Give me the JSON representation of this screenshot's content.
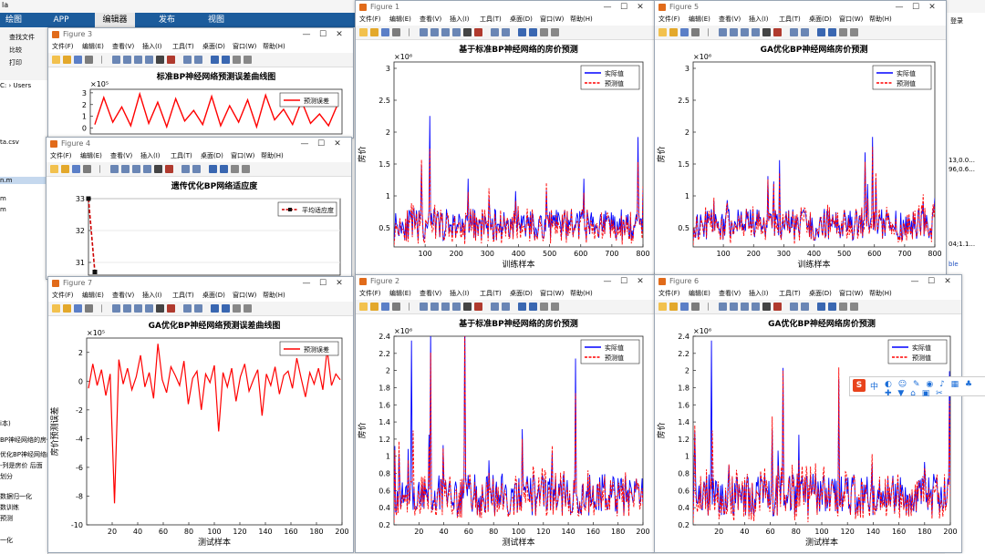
{
  "app": {
    "title_fragment": "la",
    "tabs": [
      "绘图",
      "APP",
      "编辑器",
      "发布",
      "视图"
    ],
    "active_tab": 2,
    "toolstrip": [
      "查找文件",
      "比较",
      "打印"
    ],
    "path": "C: › Users",
    "files": [
      "ta.csv",
      "m",
      "m",
      "n.m"
    ],
    "workspace_lines": [
      "i本)",
      "BP神经网络的房价",
      "优化BP神经网络的",
      "-列是房价 后面",
      "划分",
      "数据归一化",
      "数训练",
      "预测",
      "一化"
    ],
    "right_fragments": [
      "登录",
      "13,0.0...",
      "96,0.6...",
      "04;1.1...",
      "ble"
    ]
  },
  "figures": [
    {
      "id": "fig3",
      "title": "Figure 3",
      "menu": [
        "文件(F)",
        "编辑(E)",
        "查看(V)",
        "插入(I)",
        "工具(T)",
        "桌面(D)",
        "窗口(W)",
        "帮助(H)"
      ],
      "chart_data": {
        "type": "line",
        "title": "标准BP神经网络预测误差曲线图",
        "exponent": "×10⁵",
        "yticks": [
          3,
          2,
          1,
          0
        ],
        "ylim": [
          -0.5,
          3.3
        ],
        "series": [
          {
            "name": "预测误差",
            "color": "#ff0000",
            "values": [
              0.3,
              2.6,
              0.5,
              1.8,
              0.2,
              2.9,
              0.4,
              2.2,
              0.1,
              2.5,
              0.6,
              1.5,
              0.3,
              2.7,
              0.2,
              1.9,
              0.5,
              2.4,
              0.1,
              2.8,
              0.7,
              1.6,
              0.3,
              2.3,
              0.4,
              1.2,
              0.2,
              2.0
            ]
          }
        ],
        "legend": "top-right"
      }
    },
    {
      "id": "fig4",
      "title": "Figure 4",
      "menu": [
        "文件(F)",
        "编辑(E)",
        "查看(V)",
        "插入(I)",
        "工具(T)",
        "桌面(D)",
        "窗口(W)",
        "帮助(H)"
      ],
      "chart_data": {
        "type": "line",
        "title": "遗传优化BP网络适应度",
        "yticks": [
          33,
          32,
          31
        ],
        "ylim": [
          30.6,
          33
        ],
        "x": [
          1,
          2
        ],
        "series": [
          {
            "name": "平均适应度",
            "color": "#cc0000",
            "values": [
              33,
              30.7
            ]
          }
        ],
        "legend": "top-right"
      }
    },
    {
      "id": "fig7",
      "title": "Figure 7",
      "menu": [
        "文件(F)",
        "编辑(E)",
        "查看(V)",
        "插入(I)",
        "工具(T)",
        "桌面(D)",
        "窗口(W)",
        "帮助(H)"
      ],
      "chart_data": {
        "type": "line",
        "title": "GA优化BP神经网络预测误差曲线图",
        "exponent": "×10⁵",
        "ylabel": "房价预测误差",
        "xlabel": "测试样本",
        "xticks": [
          20,
          40,
          60,
          80,
          100,
          120,
          140,
          160,
          180,
          200
        ],
        "xlim": [
          0,
          200
        ],
        "yticks": [
          2,
          0,
          -2,
          -4,
          -6,
          -8,
          -10
        ],
        "ylim": [
          -10,
          3
        ],
        "series": [
          {
            "name": "预测误差",
            "color": "#ff0000",
            "values": [
              -0.5,
              1.2,
              -0.3,
              0.8,
              -1.0,
              0.5,
              -8.5,
              1.5,
              -0.2,
              0.9,
              -0.6,
              0.3,
              1.8,
              -0.4,
              0.6,
              -1.2,
              2.6,
              0.1,
              -0.8,
              1.0,
              0.4,
              -0.3,
              1.4,
              -1.6,
              0.2,
              0.7,
              -2.0,
              0.5,
              -0.1,
              1.1,
              -3.5,
              0.6,
              -0.4,
              0.9,
              -1.4,
              0.3,
              1.2,
              -0.7,
              0.1,
              0.8,
              -2.4,
              0.5,
              -0.3,
              1.0,
              -0.9,
              0.4,
              0.7,
              -0.5,
              1.6,
              0.2,
              -1.1,
              0.6,
              -0.2,
              0.9,
              -0.6,
              2.2,
              -0.3,
              0.5,
              0.1
            ]
          }
        ],
        "legend": "top-right"
      }
    },
    {
      "id": "fig1",
      "title": "Figure 1",
      "menu": [
        "文件(F)",
        "编辑(E)",
        "查看(V)",
        "插入(I)",
        "工具(T)",
        "桌面(D)",
        "窗口(W)",
        "帮助(H)"
      ],
      "chart_data": {
        "type": "line",
        "title": "基于标准BP神经网络的房价预测",
        "exponent": "×10⁶",
        "ylabel": "房价",
        "xlabel": "训练样本",
        "xticks": [
          100,
          200,
          300,
          400,
          500,
          600,
          700,
          800
        ],
        "xlim": [
          0,
          800
        ],
        "yticks": [
          3,
          2.5,
          2,
          1.5,
          1,
          0.5
        ],
        "ylim": [
          0.2,
          3.1
        ],
        "seed": 11,
        "series": [
          {
            "name": "实际值",
            "color": "#0000ff"
          },
          {
            "name": "预测值",
            "color": "#ff0000"
          }
        ],
        "legend": "top-right"
      }
    },
    {
      "id": "fig5",
      "title": "Figure 5",
      "menu": [
        "文件(F)",
        "编辑(E)",
        "查看(V)",
        "插入(I)",
        "工具(T)",
        "桌面(D)",
        "窗口(W)",
        "帮助(H)"
      ],
      "chart_data": {
        "type": "line",
        "title": "GA优化BP神经网络房价预测",
        "exponent": "×10⁶",
        "ylabel": "房价",
        "xlabel": "训练样本",
        "xticks": [
          100,
          200,
          300,
          400,
          500,
          600,
          700,
          800
        ],
        "xlim": [
          0,
          800
        ],
        "yticks": [
          3,
          2.5,
          2,
          1.5,
          1,
          0.5
        ],
        "ylim": [
          0.2,
          3.1
        ],
        "seed": 23,
        "series": [
          {
            "name": "实际值",
            "color": "#0000ff"
          },
          {
            "name": "预测值",
            "color": "#ff0000"
          }
        ],
        "legend": "top-right"
      }
    },
    {
      "id": "fig2",
      "title": "Figure 2",
      "menu": [
        "文件(F)",
        "编辑(E)",
        "查看(V)",
        "插入(I)",
        "工具(T)",
        "桌面(D)",
        "窗口(W)",
        "帮助(H)"
      ],
      "chart_data": {
        "type": "line",
        "title": "基于标准BP神经网络的房价预测",
        "exponent": "×10⁶",
        "ylabel": "房价",
        "xlabel": "测试样本",
        "xticks": [
          20,
          40,
          60,
          80,
          100,
          120,
          140,
          160,
          180,
          200
        ],
        "xlim": [
          0,
          200
        ],
        "yticks": [
          2.4,
          2.2,
          2,
          1.8,
          1.6,
          1.4,
          1.2,
          1,
          0.8,
          0.6,
          0.4,
          0.2
        ],
        "ylim": [
          0.2,
          2.4
        ],
        "seed": 37,
        "series": [
          {
            "name": "实际值",
            "color": "#0000ff"
          },
          {
            "name": "预测值",
            "color": "#ff0000"
          }
        ],
        "legend": "top-right"
      }
    },
    {
      "id": "fig6",
      "title": "Figure 6",
      "menu": [
        "文件(F)",
        "编辑(E)",
        "查看(V)",
        "插入(I)",
        "工具(T)",
        "桌面(D)",
        "窗口(W)",
        "帮助(H)"
      ],
      "chart_data": {
        "type": "line",
        "title": "GA优化BP神经网络房价预测",
        "exponent": "×10⁶",
        "ylabel": "房价",
        "xlabel": "测试样本",
        "xticks": [
          20,
          40,
          60,
          80,
          100,
          120,
          140,
          160,
          180,
          200
        ],
        "xlim": [
          0,
          200
        ],
        "yticks": [
          2.4,
          2.2,
          2,
          1.8,
          1.6,
          1.4,
          1.2,
          1,
          0.8,
          0.6,
          0.4,
          0.2
        ],
        "ylim": [
          0.2,
          2.4
        ],
        "seed": 41,
        "series": [
          {
            "name": "实际值",
            "color": "#0000ff"
          },
          {
            "name": "预测值",
            "color": "#ff0000"
          }
        ],
        "legend": "top-right"
      }
    }
  ],
  "ime": {
    "label": "中",
    "logo": "S"
  }
}
